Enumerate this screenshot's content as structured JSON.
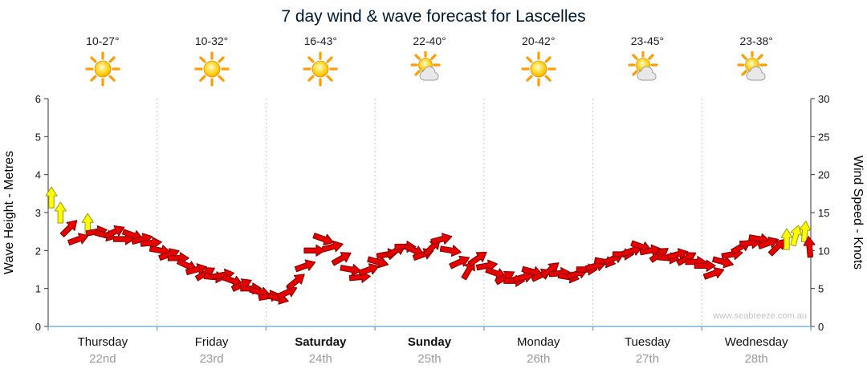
{
  "title": "7 day wind & wave forecast for Lascelles",
  "forecast": {
    "days": [
      {
        "name": "Thursday",
        "date": "22nd",
        "bold": false,
        "temp_range": "10-27°",
        "icon": "sunny"
      },
      {
        "name": "Friday",
        "date": "23rd",
        "bold": false,
        "temp_range": "10-32°",
        "icon": "sunny"
      },
      {
        "name": "Saturday",
        "date": "24th",
        "bold": true,
        "temp_range": "16-43°",
        "icon": "sunny"
      },
      {
        "name": "Sunday",
        "date": "25th",
        "bold": true,
        "temp_range": "22-40°",
        "icon": "partly-cloudy"
      },
      {
        "name": "Monday",
        "date": "26th",
        "bold": false,
        "temp_range": "20-42°",
        "icon": "sunny"
      },
      {
        "name": "Tuesday",
        "date": "27th",
        "bold": false,
        "temp_range": "23-45°",
        "icon": "partly-cloudy"
      },
      {
        "name": "Wednesday",
        "date": "28th",
        "bold": false,
        "temp_range": "23-38°",
        "icon": "partly-cloudy"
      }
    ]
  },
  "chart_data": {
    "type": "scatter",
    "title": "7 day wind & wave forecast for Lascelles",
    "left_axis": {
      "label": "Wave Height - Metres",
      "min": 0,
      "max": 6,
      "ticks": [
        0,
        1,
        2,
        3,
        4,
        5,
        6
      ]
    },
    "right_axis": {
      "label": "Wind Speed - Knots",
      "min": 0,
      "max": 30,
      "ticks": [
        0,
        5,
        10,
        15,
        20,
        25,
        30
      ]
    },
    "x_range_hours": [
      0,
      168
    ],
    "days_count": 7,
    "grid": "vertical-dotted-day-boundaries",
    "watermark": "www.seabreeze.com.au",
    "colors": {
      "red": "#e60000",
      "red_outline": "#7e0000",
      "yellow": "#ffff00",
      "yellow_outline": "#99990a",
      "axis": "#333333",
      "bottom_axis": "#7fb0d9",
      "grid_line": "#c8c8c8",
      "tick_text": "#111111",
      "watermark": "#c4c4c4",
      "title_text": "#001a33",
      "date_text": "#9a9a9a",
      "sun": "#ffc400",
      "sun_ray": "#ff9d00",
      "cloud": "#e8e8e8"
    },
    "point_format": [
      "hour",
      "knots",
      "dir_deg",
      "color"
    ],
    "wind_points": [
      [
        0,
        17,
        90,
        "y"
      ],
      [
        2,
        15,
        90,
        "y"
      ],
      [
        4,
        13,
        45,
        "r"
      ],
      [
        6,
        11.5,
        20,
        "r"
      ],
      [
        8,
        13.5,
        90,
        "y"
      ],
      [
        10,
        12.5,
        10,
        "r"
      ],
      [
        12,
        12,
        -15,
        "r"
      ],
      [
        14,
        12.5,
        25,
        "r"
      ],
      [
        16,
        11.5,
        0,
        "r"
      ],
      [
        18,
        12,
        -20,
        "r"
      ],
      [
        20,
        11.5,
        15,
        "r"
      ],
      [
        22,
        11,
        5,
        "r"
      ],
      [
        24,
        10,
        -10,
        "r"
      ],
      [
        26,
        9.5,
        20,
        "r"
      ],
      [
        28,
        9,
        0,
        "r"
      ],
      [
        30,
        8,
        -25,
        "r"
      ],
      [
        32,
        7.5,
        15,
        "r"
      ],
      [
        34,
        7,
        30,
        "r"
      ],
      [
        36,
        6.5,
        -5,
        "r"
      ],
      [
        38,
        6.8,
        10,
        "r"
      ],
      [
        40,
        6,
        -20,
        "r"
      ],
      [
        42,
        5.5,
        25,
        "r"
      ],
      [
        44,
        5,
        0,
        "r"
      ],
      [
        46,
        4.5,
        -15,
        "r"
      ],
      [
        48,
        4,
        10,
        "r"
      ],
      [
        50,
        3.7,
        -15,
        "r"
      ],
      [
        52,
        4.5,
        25,
        "r"
      ],
      [
        54,
        6,
        40,
        "r"
      ],
      [
        56,
        8,
        20,
        "r"
      ],
      [
        58,
        10,
        0,
        "r"
      ],
      [
        60,
        11.5,
        -20,
        "r"
      ],
      [
        62,
        10.5,
        15,
        "r"
      ],
      [
        64,
        9,
        30,
        "r"
      ],
      [
        66,
        7.5,
        -10,
        "r"
      ],
      [
        68,
        6.5,
        5,
        "r"
      ],
      [
        70,
        7.5,
        20,
        "r"
      ],
      [
        72,
        8.5,
        -15,
        "r"
      ],
      [
        74,
        9.5,
        10,
        "r"
      ],
      [
        76,
        10,
        30,
        "r"
      ],
      [
        78,
        10.5,
        0,
        "r"
      ],
      [
        80,
        10,
        -25,
        "r"
      ],
      [
        82,
        9.5,
        20,
        "r"
      ],
      [
        84,
        10.5,
        45,
        "r"
      ],
      [
        86,
        11.5,
        15,
        "r"
      ],
      [
        88,
        10,
        -10,
        "r"
      ],
      [
        90,
        8.5,
        25,
        "r"
      ],
      [
        92,
        7.5,
        60,
        "r"
      ],
      [
        94,
        9,
        35,
        "r"
      ],
      [
        96,
        8,
        10,
        "r"
      ],
      [
        98,
        7,
        -20,
        "r"
      ],
      [
        100,
        6.5,
        30,
        "r"
      ],
      [
        102,
        6,
        0,
        "r"
      ],
      [
        104,
        6.5,
        15,
        "r"
      ],
      [
        106,
        7.2,
        -15,
        "r"
      ],
      [
        108,
        6.8,
        25,
        "r"
      ],
      [
        110,
        7.5,
        40,
        "r"
      ],
      [
        112,
        7,
        5,
        "r"
      ],
      [
        114,
        6.5,
        -10,
        "r"
      ],
      [
        116,
        7,
        20,
        "r"
      ],
      [
        118,
        7.5,
        0,
        "r"
      ],
      [
        120,
        8,
        15,
        "r"
      ],
      [
        122,
        8.5,
        -10,
        "r"
      ],
      [
        124,
        9,
        25,
        "r"
      ],
      [
        126,
        9.5,
        0,
        "r"
      ],
      [
        128,
        10,
        20,
        "r"
      ],
      [
        130,
        10.5,
        -20,
        "r"
      ],
      [
        132,
        10,
        10,
        "r"
      ],
      [
        134,
        9.5,
        35,
        "r"
      ],
      [
        136,
        9,
        -5,
        "r"
      ],
      [
        138,
        9.5,
        15,
        "r"
      ],
      [
        140,
        9,
        30,
        "r"
      ],
      [
        142,
        8.5,
        0,
        "r"
      ],
      [
        144,
        8,
        0,
        "r"
      ],
      [
        146,
        7,
        20,
        "r"
      ],
      [
        148,
        8.5,
        -15,
        "r"
      ],
      [
        150,
        9.5,
        10,
        "r"
      ],
      [
        152,
        10.5,
        30,
        "r"
      ],
      [
        154,
        11,
        5,
        "r"
      ],
      [
        156,
        11.5,
        -10,
        "r"
      ],
      [
        158,
        11,
        20,
        "r"
      ],
      [
        160,
        10.5,
        45,
        "r"
      ],
      [
        162,
        11.5,
        90,
        "y"
      ],
      [
        164,
        12,
        75,
        "y"
      ],
      [
        166,
        12.5,
        85,
        "y"
      ],
      [
        167,
        10.5,
        95,
        "r"
      ]
    ]
  }
}
